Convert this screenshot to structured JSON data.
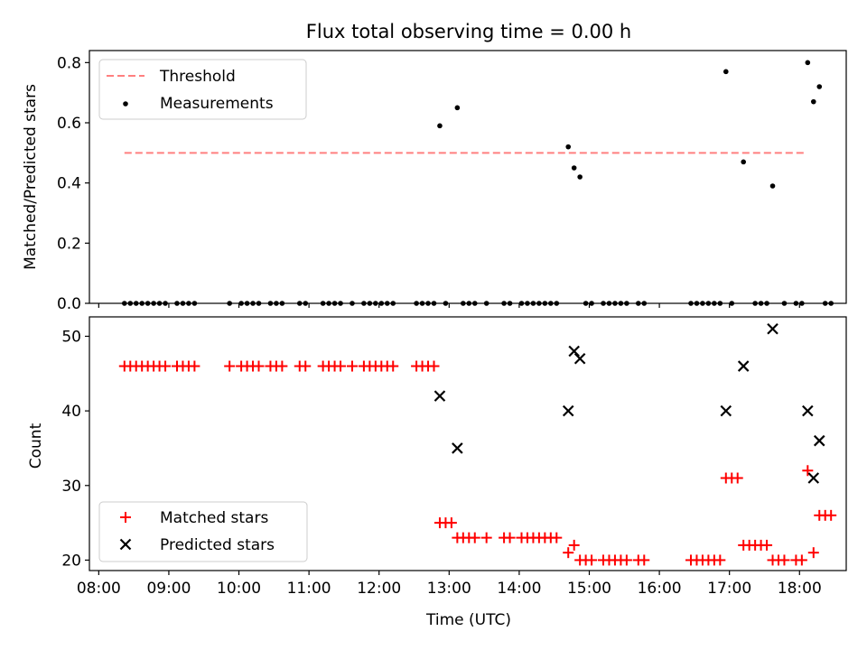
{
  "chart_data": [
    {
      "type": "scatter",
      "title": "Flux total observing time = 0.00 h",
      "xlabel": "",
      "ylabel": "Matched/Predicted stars",
      "xlim": [
        "07:52",
        "18:40"
      ],
      "ylim": [
        0,
        0.84
      ],
      "yticks": [
        0.0,
        0.2,
        0.4,
        0.6,
        0.8
      ],
      "legend_position": "top-left",
      "threshold": {
        "name": "Threshold",
        "color": "#ff7f7f",
        "style": "dashed",
        "value": 0.5,
        "x_start": "08:22",
        "x_end": "18:05"
      },
      "series": [
        {
          "name": "Measurements",
          "color": "#000000",
          "marker": "dot",
          "points": [
            [
              "08:22",
              0
            ],
            [
              "08:27",
              0
            ],
            [
              "08:32",
              0
            ],
            [
              "08:37",
              0
            ],
            [
              "08:42",
              0
            ],
            [
              "08:47",
              0
            ],
            [
              "08:52",
              0
            ],
            [
              "08:57",
              0
            ],
            [
              "09:07",
              0
            ],
            [
              "09:12",
              0
            ],
            [
              "09:17",
              0
            ],
            [
              "09:22",
              0
            ],
            [
              "09:52",
              0
            ],
            [
              "10:02",
              0
            ],
            [
              "10:07",
              0
            ],
            [
              "10:12",
              0
            ],
            [
              "10:17",
              0
            ],
            [
              "10:27",
              0
            ],
            [
              "10:32",
              0
            ],
            [
              "10:37",
              0
            ],
            [
              "10:52",
              0
            ],
            [
              "10:57",
              0
            ],
            [
              "11:12",
              0
            ],
            [
              "11:17",
              0
            ],
            [
              "11:22",
              0
            ],
            [
              "11:27",
              0
            ],
            [
              "11:37",
              0
            ],
            [
              "11:47",
              0
            ],
            [
              "11:52",
              0
            ],
            [
              "11:57",
              0
            ],
            [
              "12:02",
              0
            ],
            [
              "12:07",
              0
            ],
            [
              "12:12",
              0
            ],
            [
              "12:32",
              0
            ],
            [
              "12:37",
              0
            ],
            [
              "12:42",
              0
            ],
            [
              "12:47",
              0
            ],
            [
              "12:52",
              0.59
            ],
            [
              "12:57",
              0
            ],
            [
              "13:07",
              0.65
            ],
            [
              "13:12",
              0
            ],
            [
              "13:17",
              0
            ],
            [
              "13:22",
              0
            ],
            [
              "13:32",
              0
            ],
            [
              "13:47",
              0
            ],
            [
              "13:52",
              0
            ],
            [
              "14:02",
              0
            ],
            [
              "14:07",
              0
            ],
            [
              "14:12",
              0
            ],
            [
              "14:17",
              0
            ],
            [
              "14:22",
              0
            ],
            [
              "14:27",
              0
            ],
            [
              "14:32",
              0
            ],
            [
              "14:42",
              0.52
            ],
            [
              "14:47",
              0.45
            ],
            [
              "14:52",
              0.42
            ],
            [
              "14:57",
              0
            ],
            [
              "15:02",
              0
            ],
            [
              "15:12",
              0
            ],
            [
              "15:17",
              0
            ],
            [
              "15:22",
              0
            ],
            [
              "15:27",
              0
            ],
            [
              "15:32",
              0
            ],
            [
              "15:42",
              0
            ],
            [
              "15:47",
              0
            ],
            [
              "16:27",
              0
            ],
            [
              "16:32",
              0
            ],
            [
              "16:37",
              0
            ],
            [
              "16:42",
              0
            ],
            [
              "16:47",
              0
            ],
            [
              "16:52",
              0
            ],
            [
              "16:57",
              0.77
            ],
            [
              "17:02",
              0
            ],
            [
              "17:12",
              0.47
            ],
            [
              "17:22",
              0
            ],
            [
              "17:27",
              0
            ],
            [
              "17:32",
              0
            ],
            [
              "17:37",
              0.39
            ],
            [
              "17:47",
              0
            ],
            [
              "17:57",
              0
            ],
            [
              "18:02",
              0
            ],
            [
              "18:07",
              0.8
            ],
            [
              "18:12",
              0.67
            ],
            [
              "18:17",
              0.72
            ],
            [
              "18:22",
              0
            ],
            [
              "18:27",
              0
            ]
          ]
        }
      ]
    },
    {
      "type": "scatter",
      "title": "",
      "xlabel": "Time (UTC)",
      "ylabel": "Count",
      "xlim": [
        "07:52",
        "18:40"
      ],
      "ylim": [
        18.6,
        52.6
      ],
      "yticks": [
        20,
        30,
        40,
        50
      ],
      "xticks": [
        "08:00",
        "09:00",
        "10:00",
        "11:00",
        "12:00",
        "13:00",
        "14:00",
        "15:00",
        "16:00",
        "17:00",
        "18:00"
      ],
      "legend_position": "bottom-left",
      "series": [
        {
          "name": "Matched stars",
          "color": "#ff0000",
          "marker": "plus",
          "points": [
            [
              "08:22",
              46
            ],
            [
              "08:27",
              46
            ],
            [
              "08:32",
              46
            ],
            [
              "08:37",
              46
            ],
            [
              "08:42",
              46
            ],
            [
              "08:47",
              46
            ],
            [
              "08:52",
              46
            ],
            [
              "08:57",
              46
            ],
            [
              "09:07",
              46
            ],
            [
              "09:12",
              46
            ],
            [
              "09:17",
              46
            ],
            [
              "09:22",
              46
            ],
            [
              "09:52",
              46
            ],
            [
              "10:02",
              46
            ],
            [
              "10:07",
              46
            ],
            [
              "10:12",
              46
            ],
            [
              "10:17",
              46
            ],
            [
              "10:27",
              46
            ],
            [
              "10:32",
              46
            ],
            [
              "10:37",
              46
            ],
            [
              "10:52",
              46
            ],
            [
              "10:57",
              46
            ],
            [
              "11:12",
              46
            ],
            [
              "11:17",
              46
            ],
            [
              "11:22",
              46
            ],
            [
              "11:27",
              46
            ],
            [
              "11:37",
              46
            ],
            [
              "11:47",
              46
            ],
            [
              "11:52",
              46
            ],
            [
              "11:57",
              46
            ],
            [
              "12:02",
              46
            ],
            [
              "12:07",
              46
            ],
            [
              "12:12",
              46
            ],
            [
              "12:32",
              46
            ],
            [
              "12:37",
              46
            ],
            [
              "12:42",
              46
            ],
            [
              "12:47",
              46
            ],
            [
              "12:52",
              25
            ],
            [
              "12:57",
              25
            ],
            [
              "13:02",
              25
            ],
            [
              "13:07",
              23
            ],
            [
              "13:12",
              23
            ],
            [
              "13:17",
              23
            ],
            [
              "13:22",
              23
            ],
            [
              "13:32",
              23
            ],
            [
              "13:47",
              23
            ],
            [
              "13:52",
              23
            ],
            [
              "14:02",
              23
            ],
            [
              "14:07",
              23
            ],
            [
              "14:12",
              23
            ],
            [
              "14:17",
              23
            ],
            [
              "14:22",
              23
            ],
            [
              "14:27",
              23
            ],
            [
              "14:32",
              23
            ],
            [
              "14:42",
              21
            ],
            [
              "14:47",
              22
            ],
            [
              "14:52",
              20
            ],
            [
              "14:57",
              20
            ],
            [
              "15:02",
              20
            ],
            [
              "15:12",
              20
            ],
            [
              "15:17",
              20
            ],
            [
              "15:22",
              20
            ],
            [
              "15:27",
              20
            ],
            [
              "15:32",
              20
            ],
            [
              "15:42",
              20
            ],
            [
              "15:47",
              20
            ],
            [
              "16:27",
              20
            ],
            [
              "16:32",
              20
            ],
            [
              "16:37",
              20
            ],
            [
              "16:42",
              20
            ],
            [
              "16:47",
              20
            ],
            [
              "16:52",
              20
            ],
            [
              "16:57",
              31
            ],
            [
              "17:02",
              31
            ],
            [
              "17:07",
              31
            ],
            [
              "17:12",
              22
            ],
            [
              "17:17",
              22
            ],
            [
              "17:22",
              22
            ],
            [
              "17:27",
              22
            ],
            [
              "17:32",
              22
            ],
            [
              "17:37",
              20
            ],
            [
              "17:42",
              20
            ],
            [
              "17:47",
              20
            ],
            [
              "17:57",
              20
            ],
            [
              "18:02",
              20
            ],
            [
              "18:07",
              32
            ],
            [
              "18:12",
              21
            ],
            [
              "18:17",
              26
            ],
            [
              "18:22",
              26
            ],
            [
              "18:27",
              26
            ]
          ]
        },
        {
          "name": "Predicted stars",
          "color": "#000000",
          "marker": "x",
          "points": [
            [
              "12:52",
              42
            ],
            [
              "13:07",
              35
            ],
            [
              "14:42",
              40
            ],
            [
              "14:47",
              48
            ],
            [
              "14:52",
              47
            ],
            [
              "16:57",
              40
            ],
            [
              "17:12",
              46
            ],
            [
              "17:37",
              51
            ],
            [
              "18:07",
              40
            ],
            [
              "18:12",
              31
            ],
            [
              "18:17",
              36
            ]
          ]
        }
      ]
    }
  ]
}
